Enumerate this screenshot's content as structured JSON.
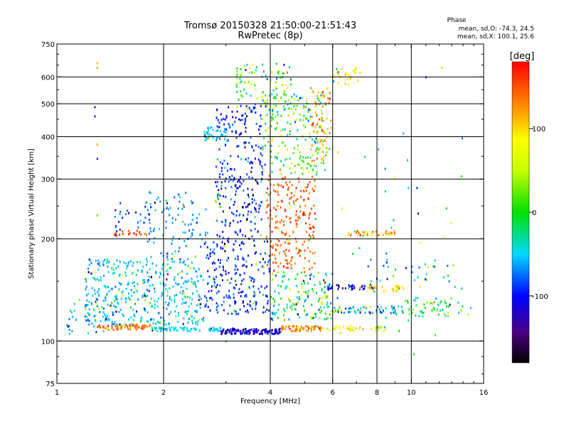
{
  "chart_data": {
    "type": "scatter",
    "title": "Tromsø 20150328 21:50:00-21:51:43",
    "subtitle": "RwPretec (8p)",
    "xlabel": "Frequency [MHz]",
    "ylabel": "Stationary phase Virtual Height [km]",
    "xscale": "log",
    "yscale": "log",
    "xlim": [
      1,
      16
    ],
    "ylim": [
      75,
      750
    ],
    "xticks": [
      1,
      2,
      4,
      6,
      8,
      10,
      16
    ],
    "yticks": [
      75,
      100,
      200,
      300,
      400,
      500,
      600,
      750
    ],
    "grid_x": [
      2,
      4,
      6,
      8,
      10
    ],
    "grid_y": [
      100,
      200,
      300,
      400,
      500,
      600
    ],
    "phase_info": {
      "title": "Phase",
      "line1": "mean, sd,O: -74.3, 24.5",
      "line2": "mean, sd,X: 100.1, 25.6"
    },
    "colorbar": {
      "label": "[deg]",
      "range": [
        -180,
        180
      ],
      "ticks": [
        100,
        0,
        -100
      ],
      "colormap": "rainbow (black - purple - blue - cyan - green - yellow - orange - red)"
    },
    "series": [
      {
        "clusters": [
          {
            "x": [
              1.05,
              1.45
            ],
            "y": [
              105,
              135
            ],
            "phase": -60,
            "spread": 60,
            "count": 40
          },
          {
            "x": [
              1.3,
              1.85
            ],
            "y": [
              108,
              112
            ],
            "phase": 140,
            "spread": 25,
            "count": 70
          },
          {
            "x": [
              1.85,
              2.9
            ],
            "y": [
              107,
              110
            ],
            "phase": -50,
            "spread": 15,
            "count": 70
          },
          {
            "x": [
              2.9,
              4.3
            ],
            "y": [
              105,
              109
            ],
            "phase": -115,
            "spread": 15,
            "count": 120
          },
          {
            "x": [
              4.3,
              5.6
            ],
            "y": [
              107,
              111
            ],
            "phase": 130,
            "spread": 30,
            "count": 60
          },
          {
            "x": [
              5.6,
              8.5
            ],
            "y": [
              107,
              111
            ],
            "phase": 80,
            "spread": 60,
            "count": 40
          },
          {
            "x": [
              1.2,
              2.6
            ],
            "y": [
              112,
              175
            ],
            "phase": -55,
            "spread": 30,
            "count": 420
          },
          {
            "x": [
              1.8,
              2.7
            ],
            "y": [
              175,
              275
            ],
            "phase": -65,
            "spread": 30,
            "count": 90
          },
          {
            "x": [
              1.45,
              1.85
            ],
            "y": [
              205,
              260
            ],
            "phase": -80,
            "spread": 50,
            "count": 30
          },
          {
            "x": [
              1.45,
              1.8
            ],
            "y": [
              205,
              212
            ],
            "phase": 150,
            "spread": 20,
            "count": 20
          },
          {
            "x": [
              2.6,
              4.0
            ],
            "y": [
              120,
              200
            ],
            "phase": -90,
            "spread": 35,
            "count": 220
          },
          {
            "x": [
              2.8,
              3.8
            ],
            "y": [
              200,
              500
            ],
            "phase": -95,
            "spread": 40,
            "count": 260
          },
          {
            "x": [
              2.6,
              3.0
            ],
            "y": [
              390,
              430
            ],
            "phase": -55,
            "spread": 15,
            "count": 40
          },
          {
            "x": [
              3.2,
              4.6
            ],
            "y": [
              480,
              660
            ],
            "phase": 20,
            "spread": 120,
            "count": 100
          },
          {
            "x": [
              3.9,
              5.4
            ],
            "y": [
              160,
              310
            ],
            "phase": 145,
            "spread": 35,
            "count": 220
          },
          {
            "x": [
              3.8,
              5.8
            ],
            "y": [
              310,
              540
            ],
            "phase": 10,
            "spread": 120,
            "count": 200
          },
          {
            "x": [
              5.2,
              6.0
            ],
            "y": [
              340,
              560
            ],
            "phase": 120,
            "spread": 40,
            "count": 60
          },
          {
            "x": [
              4.0,
              6.0
            ],
            "y": [
              115,
              160
            ],
            "phase": -20,
            "spread": 110,
            "count": 150
          },
          {
            "x": [
              6.0,
              7.2
            ],
            "y": [
              570,
              640
            ],
            "phase": 80,
            "spread": 60,
            "count": 30
          },
          {
            "x": [
              5.8,
              7.8
            ],
            "y": [
              142,
              147
            ],
            "phase": -110,
            "spread": 15,
            "count": 40
          },
          {
            "x": [
              6.0,
              9.5
            ],
            "y": [
              121,
              127
            ],
            "phase": -60,
            "spread": 60,
            "count": 60
          },
          {
            "x": [
              7.5,
              9.5
            ],
            "y": [
              140,
              146
            ],
            "phase": 100,
            "spread": 30,
            "count": 30
          },
          {
            "x": [
              6.5,
              9.0
            ],
            "y": [
              205,
              212
            ],
            "phase": 120,
            "spread": 40,
            "count": 40
          },
          {
            "x": [
              9.5,
              15.0
            ],
            "y": [
              118,
              135
            ],
            "phase": 0,
            "spread": 120,
            "count": 60
          },
          {
            "x": [
              7.0,
              13.0
            ],
            "y": [
              150,
              175
            ],
            "phase": -60,
            "spread": 100,
            "count": 25
          },
          {
            "x": [
              6.0,
              14.0
            ],
            "y": [
              85,
              400
            ],
            "phase": 0,
            "spread": 140,
            "count": 45
          }
        ],
        "points": [
          [
            1.3,
            660,
            110
          ],
          [
            1.3,
            640,
            120
          ],
          [
            1.28,
            490,
            -120
          ],
          [
            1.28,
            460,
            -120
          ],
          [
            1.3,
            380,
            120
          ],
          [
            1.3,
            345,
            -120
          ],
          [
            1.3,
            235,
            20
          ],
          [
            11,
            600,
            -110
          ],
          [
            12.2,
            640,
            110
          ],
          [
            9.5,
            410,
            -60
          ],
          [
            3.0,
            100,
            0
          ]
        ]
      }
    ]
  }
}
